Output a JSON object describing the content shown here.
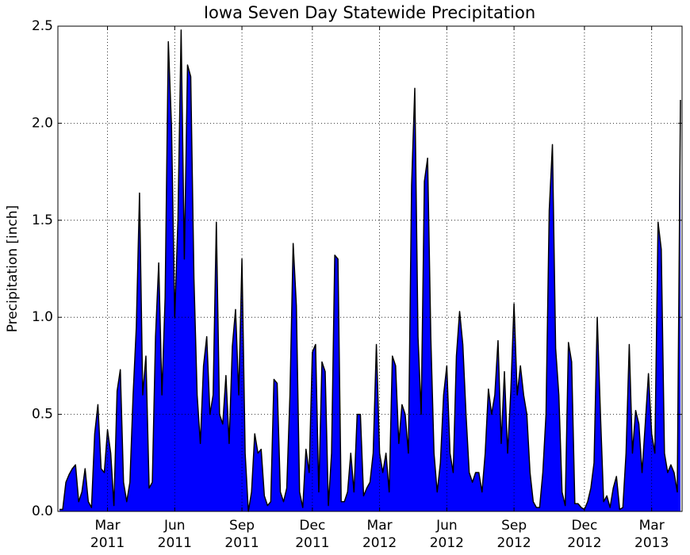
{
  "chart_data": {
    "type": "area",
    "title": "Iowa Seven Day Statewide Precipitation",
    "ylabel": "Precipitation [inch]",
    "color": "#0000ff",
    "line_color": "#000000",
    "grid": true,
    "ylim": [
      0,
      2.5
    ],
    "yticks": [
      {
        "value": 0,
        "label": "0.0"
      },
      0.5,
      {
        "value": 1,
        "label": "1.0"
      },
      1.5,
      {
        "value": 2,
        "label": "2.0"
      },
      2.5
    ],
    "categories": [
      null,
      null,
      null,
      null,
      null,
      null,
      null,
      null,
      null,
      null,
      null,
      null,
      null,
      null,
      null,
      "Mar 2011",
      null,
      null,
      null,
      null,
      null,
      null,
      null,
      null,
      null,
      null,
      null,
      null,
      null,
      null,
      null,
      null,
      null,
      null,
      null,
      null,
      "Jun 2011",
      null,
      null,
      null,
      null,
      null,
      null,
      null,
      null,
      null,
      null,
      null,
      null,
      null,
      null,
      null,
      null,
      null,
      null,
      null,
      null,
      "Sep 2011",
      null,
      null,
      null,
      null,
      null,
      null,
      null,
      null,
      null,
      null,
      null,
      null,
      null,
      null,
      null,
      null,
      null,
      null,
      null,
      null,
      null,
      "Dec 2011",
      null,
      null,
      null,
      null,
      null,
      null,
      null,
      null,
      null,
      null,
      null,
      null,
      null,
      null,
      null,
      null,
      null,
      null,
      null,
      null,
      "Mar 2012",
      null,
      null,
      null,
      null,
      null,
      null,
      null,
      null,
      null,
      null,
      null,
      null,
      null,
      null,
      null,
      null,
      null,
      null,
      null,
      null,
      "Jun 2012",
      null,
      null,
      null,
      null,
      null,
      null,
      null,
      null,
      null,
      null,
      null,
      null,
      null,
      null,
      null,
      null,
      null,
      null,
      null,
      null,
      "Sep 2012",
      null,
      null,
      null,
      null,
      null,
      null,
      null,
      null,
      null,
      null,
      null,
      null,
      null,
      null,
      null,
      null,
      null,
      null,
      null,
      null,
      null,
      "Dec 2012",
      null,
      null,
      null,
      null,
      null,
      null,
      null,
      null,
      null,
      null,
      null,
      null,
      null,
      null,
      null,
      null,
      null,
      null,
      null,
      null,
      "Mar 2013",
      null,
      null,
      null,
      null,
      null,
      null,
      null,
      null,
      null
    ],
    "values": [
      0.01,
      0.01,
      0.15,
      0.19,
      0.22,
      0.24,
      0.05,
      0.1,
      0.22,
      0.05,
      0.02,
      0.4,
      0.55,
      0.22,
      0.2,
      0.42,
      0.3,
      0.03,
      0.62,
      0.73,
      0.15,
      0.05,
      0.15,
      0.6,
      0.95,
      1.64,
      0.6,
      0.8,
      0.12,
      0.15,
      0.9,
      1.28,
      0.6,
      1.1,
      2.42,
      1.98,
      1.0,
      1.5,
      2.48,
      1.3,
      2.3,
      2.24,
      1.2,
      0.6,
      0.35,
      0.75,
      0.9,
      0.5,
      0.6,
      1.49,
      0.5,
      0.45,
      0.7,
      0.35,
      0.85,
      1.04,
      0.6,
      1.3,
      0.3,
      0.0,
      0.1,
      0.4,
      0.3,
      0.32,
      0.08,
      0.03,
      0.05,
      0.68,
      0.66,
      0.1,
      0.05,
      0.12,
      0.6,
      1.38,
      1.06,
      0.1,
      0.02,
      0.32,
      0.2,
      0.82,
      0.86,
      0.1,
      0.77,
      0.72,
      0.03,
      0.3,
      1.32,
      1.3,
      0.05,
      0.05,
      0.1,
      0.3,
      0.1,
      0.5,
      0.5,
      0.08,
      0.12,
      0.15,
      0.3,
      0.86,
      0.3,
      0.2,
      0.3,
      0.1,
      0.8,
      0.75,
      0.35,
      0.55,
      0.5,
      0.3,
      1.68,
      2.18,
      0.9,
      0.5,
      1.7,
      1.82,
      0.9,
      0.3,
      0.1,
      0.25,
      0.6,
      0.75,
      0.3,
      0.2,
      0.8,
      1.03,
      0.86,
      0.5,
      0.2,
      0.15,
      0.2,
      0.2,
      0.1,
      0.3,
      0.63,
      0.5,
      0.6,
      0.88,
      0.35,
      0.72,
      0.3,
      0.62,
      1.07,
      0.6,
      0.75,
      0.6,
      0.5,
      0.2,
      0.05,
      0.02,
      0.02,
      0.2,
      0.5,
      1.55,
      1.89,
      0.84,
      0.6,
      0.1,
      0.03,
      0.87,
      0.77,
      0.04,
      0.04,
      0.02,
      0.01,
      0.05,
      0.12,
      0.25,
      1.0,
      0.5,
      0.05,
      0.08,
      0.02,
      0.12,
      0.18,
      0.01,
      0.02,
      0.3,
      0.86,
      0.3,
      0.52,
      0.45,
      0.2,
      0.45,
      0.71,
      0.4,
      0.3,
      1.49,
      1.35,
      0.3,
      0.2,
      0.24,
      0.2,
      0.1,
      2.12
    ]
  }
}
